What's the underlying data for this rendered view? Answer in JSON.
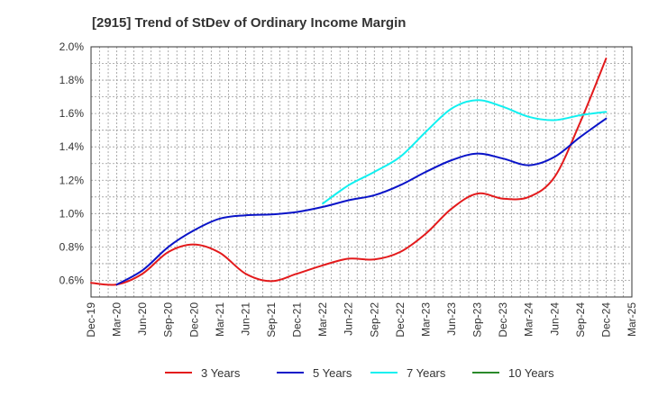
{
  "chart_data": {
    "type": "line",
    "title": "[2915]  Trend of StDev of Ordinary Income Margin",
    "xlabel": "",
    "ylabel": "",
    "x": [
      "Dec-19",
      "Mar-20",
      "Jun-20",
      "Sep-20",
      "Dec-20",
      "Mar-21",
      "Jun-21",
      "Sep-21",
      "Dec-21",
      "Mar-22",
      "Jun-22",
      "Sep-22",
      "Dec-22",
      "Mar-23",
      "Jun-23",
      "Sep-23",
      "Dec-23",
      "Mar-24",
      "Jun-24",
      "Sep-24",
      "Dec-24",
      "Mar-25"
    ],
    "y_ticks": [
      "0.6%",
      "0.8%",
      "1.0%",
      "1.2%",
      "1.4%",
      "1.6%",
      "1.8%",
      "2.0%"
    ],
    "ylim": [
      0.5,
      2.0
    ],
    "grid": true,
    "legend_position": "bottom",
    "series": [
      {
        "name": "3 Years",
        "color": "#e31a1c",
        "values": [
          0.585,
          0.575,
          0.64,
          0.77,
          0.815,
          0.765,
          0.64,
          0.595,
          0.64,
          0.69,
          0.73,
          0.725,
          0.77,
          0.88,
          1.03,
          1.12,
          1.09,
          1.1,
          1.22,
          1.55,
          1.93,
          null
        ]
      },
      {
        "name": "5 Years",
        "color": "#0a14c8",
        "values": [
          null,
          0.575,
          0.66,
          0.8,
          0.9,
          0.97,
          0.99,
          0.995,
          1.01,
          1.04,
          1.08,
          1.11,
          1.17,
          1.25,
          1.32,
          1.36,
          1.33,
          1.29,
          1.34,
          1.46,
          1.57,
          null
        ]
      },
      {
        "name": "7 Years",
        "color": "#11f0f0",
        "values": [
          null,
          null,
          null,
          null,
          null,
          null,
          null,
          null,
          null,
          1.06,
          1.17,
          1.25,
          1.34,
          1.49,
          1.63,
          1.68,
          1.64,
          1.58,
          1.56,
          1.59,
          1.61,
          null
        ]
      },
      {
        "name": "10 Years",
        "color": "#2a8a2a",
        "values": [
          null,
          null,
          null,
          null,
          null,
          null,
          null,
          null,
          null,
          null,
          null,
          null,
          null,
          null,
          null,
          null,
          null,
          null,
          null,
          null,
          null,
          null
        ]
      }
    ]
  }
}
